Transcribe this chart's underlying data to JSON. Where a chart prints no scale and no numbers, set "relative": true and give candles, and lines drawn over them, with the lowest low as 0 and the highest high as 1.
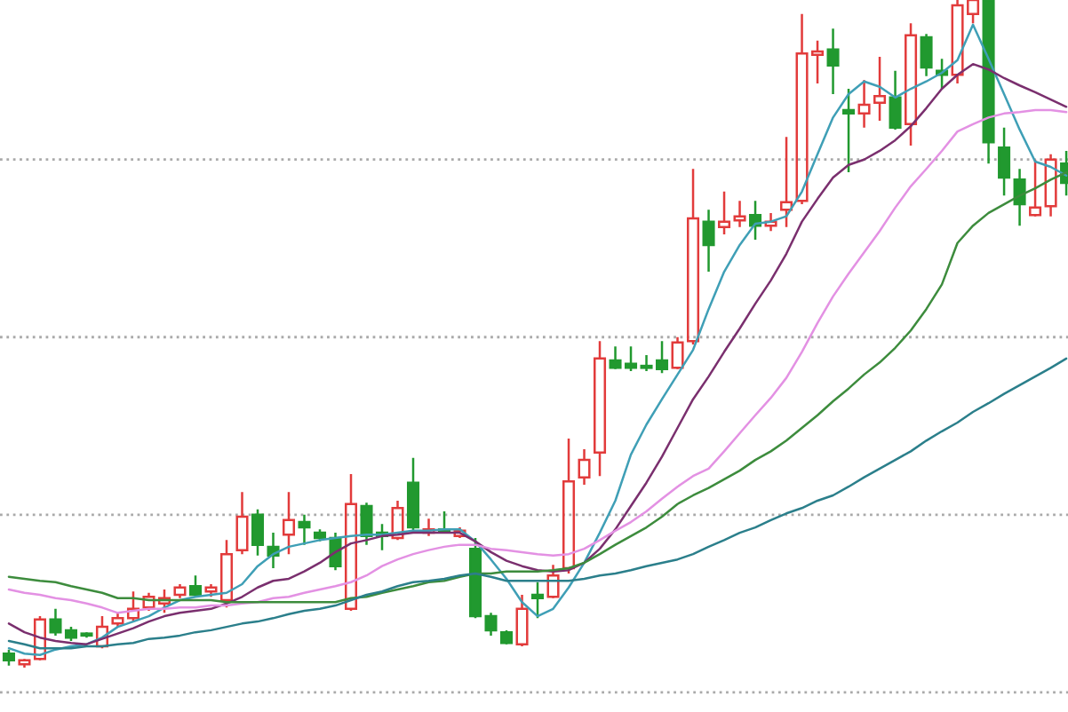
{
  "chart_data": {
    "type": "candlestick",
    "relative": true,
    "tick_labels": false,
    "categories": [
      null,
      null,
      null,
      null,
      null,
      null,
      null,
      null,
      null,
      null,
      null,
      null,
      null,
      null,
      null,
      null,
      null,
      null,
      null,
      null,
      null,
      null,
      null,
      null,
      null,
      null,
      null,
      null,
      null,
      null,
      null,
      null,
      null,
      null,
      null,
      null,
      null,
      null,
      null,
      null,
      null,
      null,
      null,
      null,
      null,
      null,
      null,
      null,
      null,
      null,
      null,
      null,
      null,
      null,
      null,
      null,
      null,
      null,
      null,
      null,
      null,
      null,
      null,
      null,
      null,
      null,
      null,
      null,
      null
    ],
    "ohlc": [
      [
        0.021,
        0.027,
        0.003,
        0.011
      ],
      [
        0.005,
        0.013,
        0,
        0.011
      ],
      [
        0.013,
        0.077,
        0.011,
        0.072
      ],
      [
        0.072,
        0.088,
        0.048,
        0.053
      ],
      [
        0.056,
        0.061,
        0.04,
        0.045
      ],
      [
        0.051,
        0.053,
        0.045,
        0.048
      ],
      [
        0.032,
        0.077,
        0.029,
        0.061
      ],
      [
        0.066,
        0.082,
        0.061,
        0.074
      ],
      [
        0.074,
        0.114,
        0.069,
        0.088
      ],
      [
        0.09,
        0.112,
        0.085,
        0.106
      ],
      [
        0.096,
        0.117,
        0.082,
        0.104
      ],
      [
        0.109,
        0.125,
        0.104,
        0.12
      ],
      [
        0.122,
        0.138,
        0.106,
        0.109
      ],
      [
        0.114,
        0.125,
        0.106,
        0.12
      ],
      [
        0.101,
        0.191,
        0.09,
        0.17
      ],
      [
        0.176,
        0.263,
        0.17,
        0.226
      ],
      [
        0.229,
        0.237,
        0.168,
        0.184
      ],
      [
        0.181,
        0.202,
        0.149,
        0.168
      ],
      [
        0.199,
        0.263,
        0.17,
        0.221
      ],
      [
        0.218,
        0.229,
        0.184,
        0.21
      ],
      [
        0.202,
        0.207,
        0.189,
        0.194
      ],
      [
        0.194,
        0.202,
        0.146,
        0.152
      ],
      [
        0.088,
        0.29,
        0.085,
        0.245
      ],
      [
        0.242,
        0.247,
        0.184,
        0.197
      ],
      [
        0.202,
        0.215,
        0.176,
        0.197
      ],
      [
        0.194,
        0.25,
        0.191,
        0.239
      ],
      [
        0.277,
        0.314,
        0.205,
        0.21
      ],
      [
        0.202,
        0.223,
        0.197,
        0.207
      ],
      [
        0.207,
        0.234,
        0.202,
        0.205
      ],
      [
        0.197,
        0.21,
        0.194,
        0.205
      ],
      [
        0.178,
        0.194,
        0.074,
        0.077
      ],
      [
        0.077,
        0.082,
        0.048,
        0.056
      ],
      [
        0.053,
        0.056,
        0.035,
        0.037
      ],
      [
        0.035,
        0.109,
        0.032,
        0.088
      ],
      [
        0.109,
        0.128,
        0.074,
        0.104
      ],
      [
        0.106,
        0.154,
        0.104,
        0.138
      ],
      [
        0.149,
        0.343,
        0.141,
        0.279
      ],
      [
        0.285,
        0.327,
        0.274,
        0.311
      ],
      [
        0.322,
        0.489,
        0.287,
        0.463
      ],
      [
        0.46,
        0.481,
        0.447,
        0.449
      ],
      [
        0.455,
        0.481,
        0.444,
        0.449
      ],
      [
        0.452,
        0.468,
        0.444,
        0.449
      ],
      [
        0.46,
        0.489,
        0.441,
        0.447
      ],
      [
        0.449,
        0.495,
        0.447,
        0.487
      ],
      [
        0.489,
        0.747,
        0.484,
        0.673
      ],
      [
        0.668,
        0.686,
        0.593,
        0.633
      ],
      [
        0.66,
        0.713,
        0.649,
        0.668
      ],
      [
        0.67,
        0.699,
        0.66,
        0.676
      ],
      [
        0.678,
        0.699,
        0.641,
        0.662
      ],
      [
        0.662,
        0.681,
        0.654,
        0.668
      ],
      [
        0.686,
        0.795,
        0.66,
        0.697
      ],
      [
        0.699,
        0.979,
        0.694,
        0.92
      ],
      [
        0.918,
        0.939,
        0.875,
        0.923
      ],
      [
        0.926,
        0.957,
        0.859,
        0.902
      ],
      [
        0.835,
        0.867,
        0.742,
        0.83
      ],
      [
        0.83,
        0.88,
        0.809,
        0.843
      ],
      [
        0.846,
        0.915,
        0.819,
        0.856
      ],
      [
        0.854,
        0.894,
        0.806,
        0.809
      ],
      [
        0.814,
        0.965,
        0.782,
        0.947
      ],
      [
        0.944,
        0.949,
        0.886,
        0.899
      ],
      [
        0.894,
        0.912,
        0.867,
        0.888
      ],
      [
        0.888,
        1,
        0.875,
        0.992
      ],
      [
        0.979,
        1,
        0.965,
        1
      ],
      [
        1,
        1,
        0.755,
        0.787
      ],
      [
        0.779,
        0.809,
        0.707,
        0.734
      ],
      [
        0.731,
        0.747,
        0.662,
        0.694
      ],
      [
        0.678,
        0.761,
        0.676,
        0.689
      ],
      [
        0.691,
        0.769,
        0.676,
        0.761
      ],
      [
        0.755,
        0.774,
        0.707,
        0.726
      ]
    ],
    "colors": [
      "#21992f",
      "#e23b3b",
      "#e23b3b",
      "#21992f",
      "#21992f",
      "#21992f",
      "#e23b3b",
      "#e23b3b",
      "#e23b3b",
      "#e23b3b",
      "#e23b3b",
      "#e23b3b",
      "#21992f",
      "#e23b3b",
      "#e23b3b",
      "#e23b3b",
      "#21992f",
      "#21992f",
      "#e23b3b",
      "#21992f",
      "#21992f",
      "#21992f",
      "#e23b3b",
      "#21992f",
      "#21992f",
      "#e23b3b",
      "#21992f",
      "#e23b3b",
      "#21992f",
      "#e23b3b",
      "#21992f",
      "#21992f",
      "#21992f",
      "#e23b3b",
      "#21992f",
      "#e23b3b",
      "#e23b3b",
      "#e23b3b",
      "#e23b3b",
      "#21992f",
      "#21992f",
      "#21992f",
      "#21992f",
      "#e23b3b",
      "#e23b3b",
      "#21992f",
      "#e23b3b",
      "#e23b3b",
      "#21992f",
      "#e23b3b",
      "#e23b3b",
      "#e23b3b",
      "#e23b3b",
      "#21992f",
      "#21992f",
      "#e23b3b",
      "#e23b3b",
      "#21992f",
      "#e23b3b",
      "#21992f",
      "#21992f",
      "#e23b3b",
      "#e23b3b",
      "#21992f",
      "#21992f",
      "#21992f",
      "#e23b3b",
      "#e23b3b",
      "#21992f"
    ],
    "series": [
      {
        "type": "line",
        "color": "#3f9fb6",
        "values": [
          0.029,
          0.021,
          0.019,
          0.027,
          0.032,
          0.035,
          0.045,
          0.061,
          0.069,
          0.077,
          0.09,
          0.101,
          0.106,
          0.109,
          0.112,
          0.125,
          0.152,
          0.17,
          0.181,
          0.186,
          0.191,
          0.194,
          0.197,
          0.199,
          0.199,
          0.202,
          0.205,
          0.205,
          0.207,
          0.207,
          0.189,
          0.162,
          0.133,
          0.098,
          0.077,
          0.088,
          0.12,
          0.157,
          0.202,
          0.25,
          0.319,
          0.364,
          0.402,
          0.439,
          0.476,
          0.537,
          0.593,
          0.633,
          0.665,
          0.668,
          0.676,
          0.713,
          0.769,
          0.824,
          0.859,
          0.878,
          0.87,
          0.854,
          0.867,
          0.878,
          0.891,
          0.91,
          0.963,
          0.912,
          0.859,
          0.806,
          0.758,
          0.75,
          0.737
        ]
      },
      {
        "type": "line",
        "color": "#7a2f6e",
        "values": [
          0.066,
          0.053,
          0.045,
          0.04,
          0.037,
          0.035,
          0.043,
          0.051,
          0.059,
          0.069,
          0.077,
          0.082,
          0.085,
          0.088,
          0.096,
          0.106,
          0.12,
          0.13,
          0.133,
          0.144,
          0.157,
          0.173,
          0.186,
          0.191,
          0.197,
          0.199,
          0.202,
          0.202,
          0.202,
          0.202,
          0.189,
          0.173,
          0.16,
          0.152,
          0.146,
          0.144,
          0.146,
          0.157,
          0.178,
          0.207,
          0.242,
          0.277,
          0.316,
          0.359,
          0.402,
          0.436,
          0.473,
          0.508,
          0.545,
          0.58,
          0.62,
          0.668,
          0.702,
          0.734,
          0.753,
          0.761,
          0.774,
          0.79,
          0.811,
          0.838,
          0.867,
          0.888,
          0.904,
          0.896,
          0.883,
          0.872,
          0.862,
          0.851,
          0.84
        ]
      },
      {
        "type": "line",
        "color": "#e391e3",
        "values": [
          0.117,
          0.112,
          0.109,
          0.104,
          0.101,
          0.096,
          0.09,
          0.082,
          0.085,
          0.088,
          0.088,
          0.09,
          0.09,
          0.093,
          0.093,
          0.096,
          0.098,
          0.104,
          0.106,
          0.112,
          0.117,
          0.122,
          0.128,
          0.138,
          0.152,
          0.162,
          0.17,
          0.176,
          0.181,
          0.184,
          0.184,
          0.178,
          0.176,
          0.173,
          0.17,
          0.168,
          0.17,
          0.178,
          0.191,
          0.205,
          0.218,
          0.234,
          0.253,
          0.271,
          0.287,
          0.298,
          0.324,
          0.351,
          0.378,
          0.404,
          0.434,
          0.473,
          0.516,
          0.556,
          0.59,
          0.622,
          0.654,
          0.689,
          0.721,
          0.747,
          0.774,
          0.803,
          0.814,
          0.824,
          0.83,
          0.832,
          0.835,
          0.835,
          0.832
        ]
      },
      {
        "type": "line",
        "color": "#3d8c3d",
        "values": [
          0.136,
          0.133,
          0.13,
          0.128,
          0.122,
          0.117,
          0.112,
          0.104,
          0.104,
          0.101,
          0.101,
          0.101,
          0.101,
          0.101,
          0.098,
          0.098,
          0.098,
          0.098,
          0.098,
          0.098,
          0.098,
          0.098,
          0.104,
          0.106,
          0.112,
          0.117,
          0.122,
          0.128,
          0.13,
          0.136,
          0.141,
          0.141,
          0.144,
          0.144,
          0.144,
          0.146,
          0.149,
          0.157,
          0.17,
          0.184,
          0.197,
          0.21,
          0.226,
          0.245,
          0.258,
          0.269,
          0.282,
          0.295,
          0.311,
          0.324,
          0.34,
          0.359,
          0.378,
          0.399,
          0.418,
          0.439,
          0.457,
          0.479,
          0.505,
          0.537,
          0.574,
          0.636,
          0.662,
          0.681,
          0.694,
          0.707,
          0.718,
          0.731,
          0.742
        ]
      },
      {
        "type": "line",
        "color": "#2b7f8b",
        "values": [
          0.04,
          0.035,
          0.029,
          0.029,
          0.029,
          0.032,
          0.032,
          0.035,
          0.037,
          0.043,
          0.045,
          0.048,
          0.053,
          0.056,
          0.061,
          0.066,
          0.069,
          0.074,
          0.08,
          0.085,
          0.088,
          0.093,
          0.101,
          0.109,
          0.114,
          0.122,
          0.128,
          0.13,
          0.133,
          0.138,
          0.141,
          0.136,
          0.13,
          0.13,
          0.13,
          0.13,
          0.13,
          0.133,
          0.138,
          0.141,
          0.146,
          0.152,
          0.157,
          0.162,
          0.17,
          0.181,
          0.191,
          0.202,
          0.21,
          0.221,
          0.231,
          0.239,
          0.25,
          0.258,
          0.271,
          0.285,
          0.298,
          0.311,
          0.324,
          0.34,
          0.354,
          0.367,
          0.383,
          0.396,
          0.41,
          0.423,
          0.436,
          0.449,
          0.463
        ]
      }
    ],
    "ref_lines": [
      {
        "axis": "y",
        "value": 0.761,
        "color": "#aaaaaa",
        "line_style": "dotted"
      },
      {
        "axis": "y",
        "value": 0.495,
        "color": "#aaaaaa",
        "line_style": "dotted"
      },
      {
        "axis": "y",
        "value": 0.229,
        "color": "#aaaaaa",
        "line_style": "dotted"
      },
      {
        "axis": "y",
        "value": -0.037,
        "color": "#aaaaaa",
        "line_style": "dotted"
      }
    ]
  }
}
